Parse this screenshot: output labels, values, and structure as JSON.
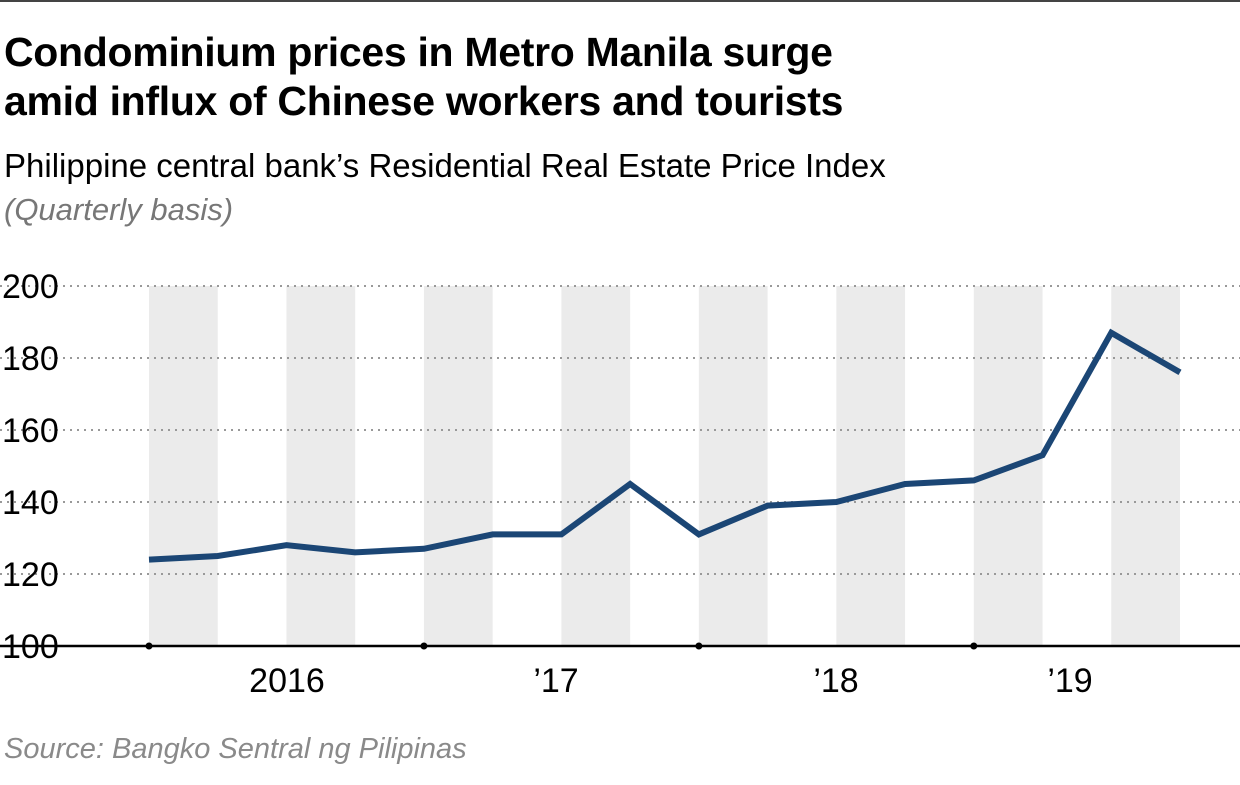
{
  "header": {
    "title_line1": "Condominium prices in Metro Manila surge",
    "title_line2": "amid influx of Chinese workers and tourists",
    "subtitle": "Philippine central bank’s Residential Real Estate Price Index",
    "note": "(Quarterly basis)"
  },
  "footer": {
    "source": "Source: Bangko Sentral ng Pilipinas"
  },
  "chart_data": {
    "type": "line",
    "title": "Condominium prices in Metro Manila surge amid influx of Chinese workers and tourists",
    "subtitle": "Philippine central bank’s Residential Real Estate Price Index",
    "x": [
      "2016 Q1",
      "2016 Q2",
      "2016 Q3",
      "2016 Q4",
      "2017 Q1",
      "2017 Q2",
      "2017 Q3",
      "2017 Q4",
      "2018 Q1",
      "2018 Q2",
      "2018 Q3",
      "2018 Q4",
      "2019 Q1",
      "2019 Q2",
      "2019 Q3",
      "2019 Q4"
    ],
    "series": [
      {
        "values": [
          124,
          125,
          128,
          126,
          127,
          131,
          131,
          145,
          131,
          139,
          140,
          145,
          146,
          153,
          187,
          176
        ],
        "color": "#1b4675"
      }
    ],
    "ylim": [
      100,
      200
    ],
    "yticks": [
      "100",
      "120",
      "140",
      "160",
      "180",
      "200"
    ],
    "xtick_labels": [
      "2016",
      "’17",
      "’18",
      "’19"
    ],
    "grid": "horizontal dotted",
    "band_color": "#ebebeb"
  }
}
